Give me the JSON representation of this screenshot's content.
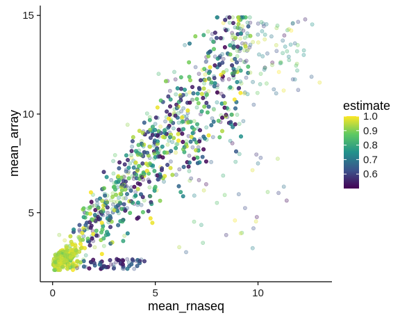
{
  "chart_data": {
    "type": "scatter",
    "title": "",
    "xlabel": "mean_rnaseq",
    "ylabel": "mean_array",
    "xlim": [
      -0.6,
      13.6
    ],
    "ylim": [
      1.5,
      15.5
    ],
    "x_ticks": [
      0,
      5,
      10
    ],
    "y_ticks": [
      5,
      10,
      15
    ],
    "grid": false,
    "point_alpha": 0.25,
    "color_variable": "estimate",
    "legend": {
      "title": "estimate",
      "placement": "right",
      "type": "colorbar",
      "range": [
        0.5,
        1.0
      ],
      "ticks": [
        0.6,
        0.7,
        0.8,
        0.9,
        1.0
      ],
      "tick_labels": [
        "0.6",
        "0.7",
        "0.8",
        "0.9",
        "1.0"
      ],
      "colormap": "viridis",
      "stops": [
        "#440154",
        "#3b528b",
        "#21918c",
        "#5ec962",
        "#fde725"
      ]
    },
    "point_count_approx": 9000,
    "distribution_note": "dense fan of points rising from about (0, 2.2) toward about (12.5, 15); high estimate values concentrated at low x near the lower left",
    "sample_points": [
      {
        "x": 0.1,
        "y": 2.3,
        "estimate": 0.98
      },
      {
        "x": 0.6,
        "y": 2.6,
        "estimate": 0.95
      },
      {
        "x": 1.2,
        "y": 2.2,
        "estimate": 0.55
      },
      {
        "x": 2.5,
        "y": 2.3,
        "estimate": 0.5
      },
      {
        "x": 1.8,
        "y": 5.2,
        "estimate": 0.9
      },
      {
        "x": 3.0,
        "y": 6.5,
        "estimate": 0.85
      },
      {
        "x": 4.2,
        "y": 8.0,
        "estimate": 0.75
      },
      {
        "x": 5.0,
        "y": 9.5,
        "estimate": 0.7
      },
      {
        "x": 6.0,
        "y": 11.0,
        "estimate": 0.8
      },
      {
        "x": 7.5,
        "y": 12.2,
        "estimate": 0.65
      },
      {
        "x": 9.0,
        "y": 13.2,
        "estimate": 0.9
      },
      {
        "x": 10.2,
        "y": 14.2,
        "estimate": 0.75
      },
      {
        "x": 11.5,
        "y": 14.3,
        "estimate": 0.95
      },
      {
        "x": 12.3,
        "y": 14.8,
        "estimate": 0.55
      },
      {
        "x": 13.0,
        "y": 11.6,
        "estimate": 0.98
      },
      {
        "x": 11.0,
        "y": 6.0,
        "estimate": 0.6
      },
      {
        "x": 10.0,
        "y": 7.5,
        "estimate": 0.7
      },
      {
        "x": 8.0,
        "y": 5.5,
        "estimate": 0.85
      },
      {
        "x": 6.5,
        "y": 3.0,
        "estimate": 0.65
      }
    ]
  }
}
